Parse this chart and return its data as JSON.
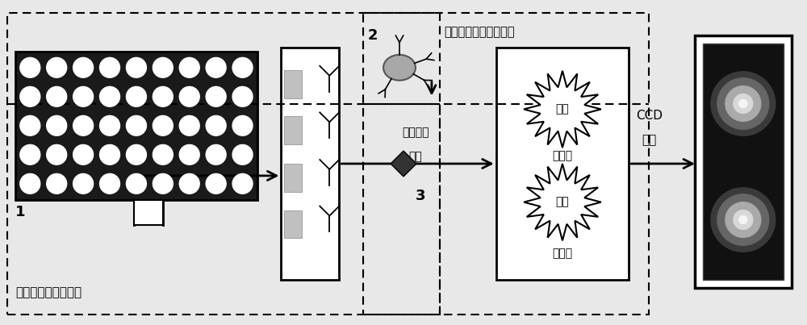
{
  "bg_color": "#e8e8e8",
  "label_1": "1",
  "label_2": "2",
  "label_3": "3",
  "text_chip": "可抛式免疫传感芯片",
  "text_nanoparticle": "模拟酶标记銀纳米粒子",
  "text_substrate_line1": "化学发光",
  "text_substrate_line2": "底物",
  "text_ccd_line1": "CCD",
  "text_ccd_line2": "相机",
  "text_signal1": "信号",
  "text_nosignal1": "无信号",
  "text_signal2": "信号",
  "text_nosignal2": "无信号"
}
